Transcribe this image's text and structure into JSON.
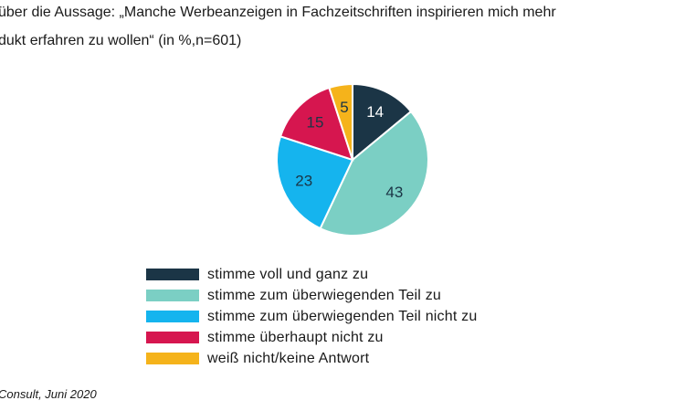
{
  "title_lines": [
    "über die Aussage: „Manche Werbeanzeigen in Fachzeitschriften inspirieren mich mehr",
    "dukt erfahren zu wollen“ (in %,n=601)"
  ],
  "source": "Consult, Juni 2020",
  "chart_data": {
    "type": "pie",
    "title": "über die Aussage: „Manche Werbeanzeigen in Fachzeitschriften inspirieren mich mehr … dukt erfahren zu wollen“ (in %,n=601)",
    "slices": [
      {
        "label": "stimme voll und ganz zu",
        "value": 14,
        "color": "#1b3546",
        "label_color": "#ffffff"
      },
      {
        "label": "stimme zum überwiegenden Teil zu",
        "value": 43,
        "color": "#7bcfc4",
        "label_color": "#1b3546"
      },
      {
        "label": "stimme zum überwiegenden Teil nicht zu",
        "value": 23,
        "color": "#15b4ee",
        "label_color": "#1b3546"
      },
      {
        "label": "stimme überhaupt nicht zu",
        "value": 15,
        "color": "#d6164f",
        "label_color": "#1b3546"
      },
      {
        "label": "weiß nicht/keine Antwort",
        "value": 5,
        "color": "#f5b31b",
        "label_color": "#1b3546"
      }
    ],
    "start_angle_deg": 0,
    "direction": "clockwise",
    "legend_position": "below"
  }
}
